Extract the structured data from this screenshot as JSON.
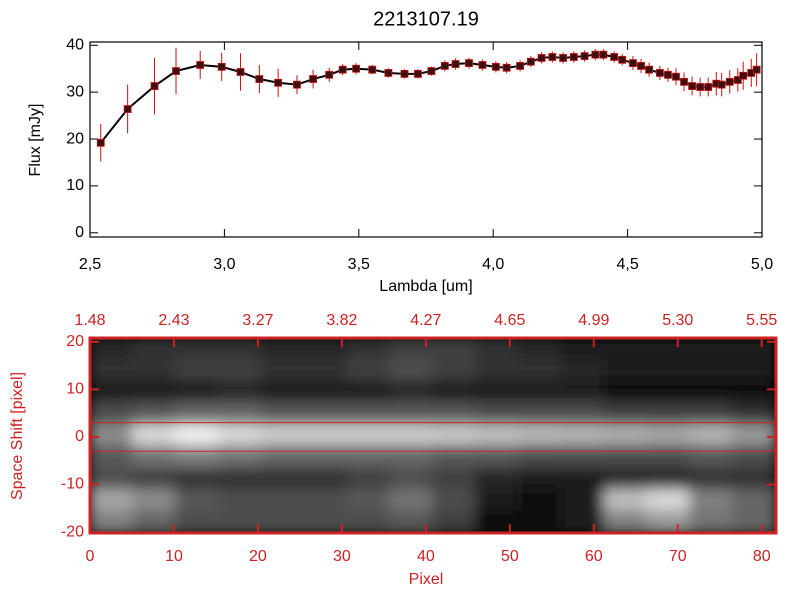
{
  "chart_data": [
    {
      "type": "line",
      "title": "2213107.19",
      "x_label": "Lambda [um]",
      "y_label": "Flux [mJy]",
      "xlim": [
        2.5,
        5.0
      ],
      "ylim": [
        -0.9,
        40.7
      ],
      "xticks": [
        {
          "value": 2.5,
          "label": "2,5"
        },
        {
          "value": 3.0,
          "label": "3,0"
        },
        {
          "value": 3.5,
          "label": "3,5"
        },
        {
          "value": 4.0,
          "label": "4,0"
        },
        {
          "value": 4.5,
          "label": "4,5"
        },
        {
          "value": 5.0,
          "label": "5,0"
        }
      ],
      "yticks": [
        0,
        10,
        20,
        30,
        40
      ],
      "series": [
        {
          "color": "#000000",
          "error_color": "#cc1111",
          "x": [
            2.54,
            2.64,
            2.74,
            2.82,
            2.91,
            2.99,
            3.06,
            3.13,
            3.2,
            3.27,
            3.33,
            3.39,
            3.44,
            3.49,
            3.55,
            3.61,
            3.67,
            3.72,
            3.77,
            3.82,
            3.86,
            3.91,
            3.96,
            4.01,
            4.05,
            4.1,
            4.14,
            4.18,
            4.22,
            4.26,
            4.3,
            4.34,
            4.38,
            4.41,
            4.45,
            4.48,
            4.52,
            4.55,
            4.58,
            4.62,
            4.65,
            4.68,
            4.71,
            4.74,
            4.77,
            4.8,
            4.83,
            4.85,
            4.88,
            4.91,
            4.93,
            4.96,
            4.98
          ],
          "values": [
            19.2,
            26.4,
            31.3,
            34.5,
            35.8,
            35.4,
            34.3,
            32.8,
            32.0,
            31.6,
            32.8,
            33.7,
            34.8,
            35.0,
            34.8,
            34.1,
            33.9,
            33.9,
            34.5,
            35.6,
            36.0,
            36.2,
            35.8,
            35.4,
            35.2,
            35.6,
            36.5,
            37.3,
            37.5,
            37.3,
            37.5,
            37.7,
            38.0,
            38.0,
            37.5,
            36.9,
            36.2,
            35.6,
            34.8,
            34.1,
            33.7,
            33.3,
            32.2,
            31.3,
            31.1,
            31.1,
            31.8,
            31.6,
            32.2,
            32.6,
            33.5,
            34.1,
            34.8
          ],
          "errors": [
            4.0,
            5.2,
            6.0,
            5.0,
            3.0,
            3.0,
            4.0,
            3.0,
            3.0,
            2.0,
            2.0,
            1.5,
            1.2,
            1.2,
            1.0,
            1.0,
            1.0,
            1.0,
            1.0,
            1.2,
            1.2,
            1.2,
            1.2,
            1.2,
            1.2,
            1.2,
            1.2,
            1.2,
            1.2,
            1.2,
            1.2,
            1.2,
            1.2,
            1.2,
            1.2,
            1.2,
            1.5,
            1.5,
            1.5,
            1.5,
            1.5,
            1.8,
            2.0,
            2.0,
            2.0,
            2.0,
            2.5,
            2.5,
            2.5,
            2.5,
            3.0,
            3.0,
            3.5
          ]
        }
      ]
    },
    {
      "type": "image",
      "x_label": "Pixel",
      "y_label": "Space Shift [pixel]",
      "color": "#cc2222",
      "xlim": [
        0,
        81.7
      ],
      "ylim": [
        -20.2,
        20.8
      ],
      "xticks": [
        0,
        10,
        20,
        30,
        40,
        50,
        60,
        70,
        80
      ],
      "x2ticks": [
        {
          "value": 0,
          "label": "1.48"
        },
        {
          "value": 10,
          "label": "2.43"
        },
        {
          "value": 20,
          "label": "3.27"
        },
        {
          "value": 30,
          "label": "3.82"
        },
        {
          "value": 40,
          "label": "4.27"
        },
        {
          "value": 50,
          "label": "4.65"
        },
        {
          "value": 60,
          "label": "4.99"
        },
        {
          "value": 70,
          "label": "5.30"
        },
        {
          "value": 80,
          "label": "5.55"
        }
      ],
      "yticks": [
        -20,
        -10,
        0,
        10,
        20
      ],
      "aperture": [
        -3,
        3
      ],
      "rows": [
        [
          0.15,
          0.2,
          0.2,
          0.2,
          0.15,
          0.15,
          0.2,
          0.25,
          0.25,
          0.2,
          0.15,
          0.1,
          0.1,
          0.1,
          0.1,
          0.1
        ],
        [
          0.2,
          0.2,
          0.25,
          0.25,
          0.2,
          0.2,
          0.25,
          0.3,
          0.25,
          0.2,
          0.2,
          0.15,
          0.1,
          0.1,
          0.1,
          0.1
        ],
        [
          0.1,
          0.1,
          0.1,
          0.15,
          0.1,
          0.1,
          0.1,
          0.15,
          0.1,
          0.1,
          0.1,
          0.1,
          0.05,
          0.05,
          0.05,
          0.05
        ],
        [
          0.3,
          0.35,
          0.4,
          0.4,
          0.35,
          0.35,
          0.35,
          0.35,
          0.35,
          0.3,
          0.3,
          0.3,
          0.25,
          0.25,
          0.25,
          0.2
        ],
        [
          0.55,
          0.85,
          0.95,
          0.85,
          0.8,
          0.8,
          0.8,
          0.8,
          0.78,
          0.75,
          0.72,
          0.7,
          0.68,
          0.65,
          0.7,
          0.6
        ],
        [
          0.35,
          0.45,
          0.5,
          0.45,
          0.4,
          0.4,
          0.4,
          0.4,
          0.35,
          0.35,
          0.3,
          0.3,
          0.3,
          0.3,
          0.35,
          0.3
        ],
        [
          0.3,
          0.25,
          0.2,
          0.2,
          0.2,
          0.2,
          0.25,
          0.3,
          0.25,
          0.15,
          0.1,
          0.1,
          0.15,
          0.15,
          0.2,
          0.2
        ],
        [
          0.65,
          0.55,
          0.35,
          0.3,
          0.3,
          0.3,
          0.35,
          0.45,
          0.3,
          0.1,
          0.05,
          0.1,
          0.75,
          0.85,
          0.5,
          0.4
        ],
        [
          0.5,
          0.4,
          0.3,
          0.3,
          0.3,
          0.3,
          0.3,
          0.35,
          0.25,
          0.05,
          0.05,
          0.1,
          0.5,
          0.6,
          0.45,
          0.4
        ]
      ]
    }
  ]
}
